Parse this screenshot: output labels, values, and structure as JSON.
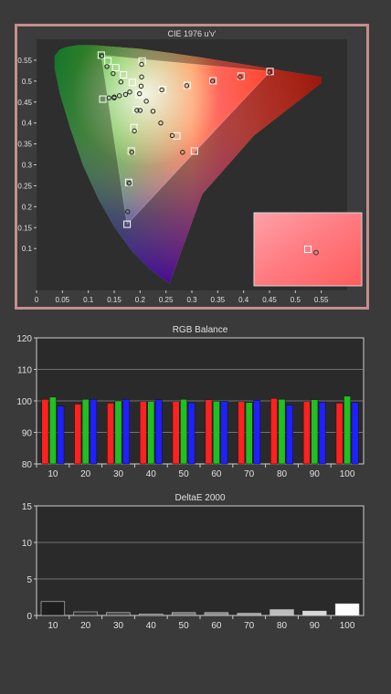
{
  "chart_data": [
    {
      "type": "scatter",
      "title": "CIE 1976 u'v'",
      "xlim": [
        0,
        0.6
      ],
      "ylim": [
        0,
        0.6
      ],
      "x_ticks": [
        0,
        0.05,
        0.1,
        0.15,
        0.2,
        0.25,
        0.3,
        0.35,
        0.4,
        0.45,
        0.5,
        0.55
      ],
      "y_ticks": [
        0.1,
        0.15,
        0.2,
        0.25,
        0.3,
        0.35,
        0.4,
        0.45,
        0.5,
        0.55
      ],
      "x_tick_labels": [
        "0",
        "0.05",
        "0.1",
        "0.15",
        "0.2",
        "0.25",
        "0.3",
        "0.35",
        "0.4",
        "0.45",
        "0.5",
        "0.55"
      ],
      "y_tick_labels": [
        "0.1",
        "0.15",
        "0.2",
        "0.25",
        "0.3",
        "0.35",
        "0.4",
        "0.45",
        "0.5",
        "0.55"
      ],
      "gamut_triangle": {
        "red": [
          0.451,
          0.523
        ],
        "green": [
          0.125,
          0.562
        ],
        "blue": [
          0.175,
          0.158
        ]
      },
      "targets": [
        [
          0.451,
          0.523
        ],
        [
          0.395,
          0.512
        ],
        [
          0.341,
          0.501
        ],
        [
          0.291,
          0.49
        ],
        [
          0.243,
          0.48
        ],
        [
          0.125,
          0.562
        ],
        [
          0.138,
          0.548
        ],
        [
          0.153,
          0.532
        ],
        [
          0.168,
          0.515
        ],
        [
          0.185,
          0.497
        ],
        [
          0.175,
          0.158
        ],
        [
          0.178,
          0.258
        ],
        [
          0.183,
          0.333
        ],
        [
          0.188,
          0.389
        ],
        [
          0.193,
          0.432
        ],
        [
          0.198,
          0.468
        ],
        [
          0.204,
          0.548
        ],
        [
          0.128,
          0.457
        ],
        [
          0.271,
          0.369
        ],
        [
          0.305,
          0.333
        ]
      ],
      "measurements": [
        [
          0.45,
          0.521
        ],
        [
          0.393,
          0.51
        ],
        [
          0.34,
          0.5
        ],
        [
          0.29,
          0.489
        ],
        [
          0.242,
          0.479
        ],
        [
          0.126,
          0.56
        ],
        [
          0.136,
          0.535
        ],
        [
          0.148,
          0.518
        ],
        [
          0.163,
          0.498
        ],
        [
          0.18,
          0.474
        ],
        [
          0.176,
          0.188
        ],
        [
          0.179,
          0.256
        ],
        [
          0.184,
          0.33
        ],
        [
          0.189,
          0.381
        ],
        [
          0.194,
          0.43
        ],
        [
          0.199,
          0.47
        ],
        [
          0.203,
          0.54
        ],
        [
          0.203,
          0.51
        ],
        [
          0.202,
          0.488
        ],
        [
          0.14,
          0.46
        ],
        [
          0.15,
          0.462
        ],
        [
          0.16,
          0.465
        ],
        [
          0.172,
          0.468
        ],
        [
          0.212,
          0.452
        ],
        [
          0.225,
          0.428
        ],
        [
          0.24,
          0.4
        ],
        [
          0.262,
          0.37
        ],
        [
          0.282,
          0.33
        ],
        [
          0.15,
          0.46
        ],
        [
          0.2,
          0.43
        ]
      ],
      "inset_target": [
        0.495,
        0.275
      ],
      "inset_measurement": [
        0.5,
        0.273
      ],
      "colors": {
        "frame": "#c48e8e",
        "target": "#ffffff",
        "measurement": "#222222"
      }
    },
    {
      "type": "bar",
      "title": "RGB Balance",
      "categories": [
        "10",
        "20",
        "30",
        "40",
        "50",
        "60",
        "70",
        "80",
        "90",
        "100"
      ],
      "ylim": [
        80,
        120
      ],
      "y_ticks": [
        80,
        90,
        100,
        110,
        120
      ],
      "series": [
        {
          "color": "#ff2020",
          "values": [
            100.5,
            99.0,
            99.3,
            99.8,
            99.8,
            100.4,
            99.8,
            100.8,
            99.8,
            99.3
          ]
        },
        {
          "color": "#20c020",
          "values": [
            101.2,
            100.5,
            100.0,
            99.8,
            100.5,
            99.9,
            99.5,
            100.5,
            100.4,
            101.5
          ]
        },
        {
          "color": "#2020ff",
          "values": [
            98.3,
            100.5,
            100.5,
            100.4,
            99.4,
            99.9,
            100.2,
            98.7,
            99.6,
            99.5
          ]
        }
      ]
    },
    {
      "type": "bar",
      "title": "DeltaE 2000",
      "categories": [
        "10",
        "20",
        "30",
        "40",
        "50",
        "60",
        "70",
        "80",
        "90",
        "100"
      ],
      "ylim": [
        0,
        15
      ],
      "y_ticks": [
        0,
        5,
        10,
        15
      ],
      "series": [
        {
          "colors": [
            "#1e1e1e",
            "#333333",
            "#4a4a4a",
            "#5c5c5c",
            "#777777",
            "#8c8c8c",
            "#a4a4a4",
            "#bdbdbd",
            "#d8d8d8",
            "#ffffff"
          ],
          "values": [
            1.9,
            0.5,
            0.4,
            0.2,
            0.4,
            0.4,
            0.3,
            0.8,
            0.6,
            1.6
          ]
        }
      ]
    }
  ]
}
